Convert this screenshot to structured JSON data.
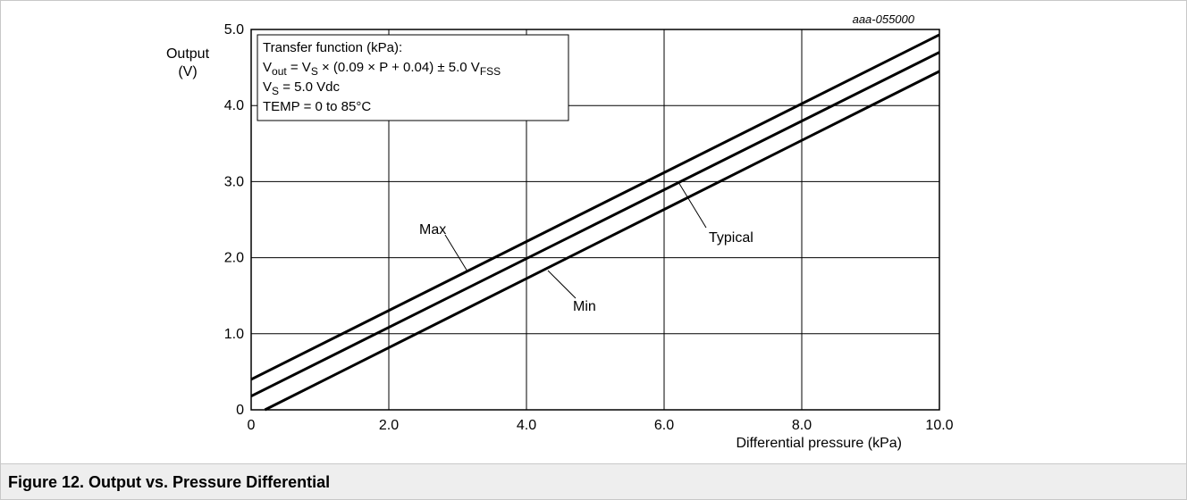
{
  "figure_id": "aaa-055000",
  "caption": "Figure 12.  Output vs. Pressure Differential",
  "colors": {
    "lines": "#000000",
    "grid": "#000000",
    "caption_bg": "#eeeeee"
  },
  "chart_data": {
    "type": "line",
    "xlabel": "Differential pressure (kPa)",
    "ylabel_lines": [
      "Output",
      "(V)"
    ],
    "xlim": [
      0,
      10.0
    ],
    "ylim": [
      0,
      5.0
    ],
    "x_ticks": [
      0,
      2.0,
      4.0,
      6.0,
      8.0,
      10.0
    ],
    "x_tick_labels": [
      "0",
      "2.0",
      "4.0",
      "6.0",
      "8.0",
      "10.0"
    ],
    "y_ticks": [
      0,
      1.0,
      2.0,
      3.0,
      4.0,
      5.0
    ],
    "y_tick_labels": [
      "0",
      "1.0",
      "2.0",
      "3.0",
      "4.0",
      "5.0"
    ],
    "grid": true,
    "series": [
      {
        "name": "Max",
        "x": [
          0,
          10.0
        ],
        "y": [
          0.4,
          4.93
        ]
      },
      {
        "name": "Typical",
        "x": [
          0,
          10.0
        ],
        "y": [
          0.18,
          4.7
        ]
      },
      {
        "name": "Min",
        "x": [
          0.2,
          10.0
        ],
        "y": [
          0,
          4.45
        ]
      }
    ],
    "legend_box": {
      "placement": "top-left",
      "line1": "Transfer function (kPa):",
      "line2": {
        "v": "V",
        "out_sub": "out",
        "eq1": " = V",
        "s_sub": "S",
        "formula": " × (0.09 × P + 0.04) ± 5.0 V",
        "fss_sub": "FSS"
      },
      "line3": {
        "v": "V",
        "s_sub": "S",
        "rest": " = 5.0 Vdc"
      },
      "line4": "TEMP = 0 to 85°C"
    }
  }
}
